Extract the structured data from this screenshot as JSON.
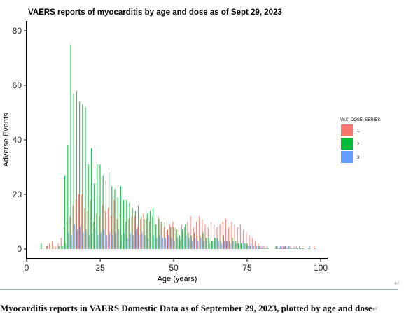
{
  "chart_data": {
    "type": "bar",
    "title": "VAERS reports of myocarditis by age and dose as of Sept 29, 2023",
    "xlabel": "Age (years)",
    "ylabel": "Adverse Events",
    "xlim": [
      0,
      100
    ],
    "ylim": [
      0,
      80
    ],
    "xticks": [
      "0",
      "25",
      "50",
      "75",
      "100"
    ],
    "yticks": [
      "0",
      "20",
      "40",
      "60",
      "80"
    ],
    "legend": {
      "title": "VAX_DOSE_SERIES",
      "placement": "right"
    },
    "series": [
      {
        "name": "1",
        "color": "#F8766D",
        "x": [
          5,
          7,
          8,
          9,
          10,
          11,
          12,
          13,
          14,
          15,
          16,
          17,
          18,
          19,
          20,
          21,
          22,
          23,
          24,
          25,
          26,
          27,
          28,
          29,
          30,
          31,
          32,
          33,
          34,
          35,
          36,
          37,
          38,
          39,
          40,
          41,
          42,
          43,
          44,
          45,
          46,
          47,
          48,
          49,
          50,
          51,
          52,
          53,
          54,
          55,
          56,
          57,
          58,
          59,
          60,
          61,
          62,
          63,
          64,
          65,
          66,
          67,
          68,
          69,
          70,
          71,
          72,
          73,
          74,
          75,
          76,
          77,
          78,
          79,
          80,
          81,
          82,
          85,
          86,
          87,
          88,
          89,
          90,
          91,
          92,
          93,
          94,
          96,
          98
        ],
        "values": [
          0,
          1,
          2,
          3,
          1,
          2,
          4,
          8,
          10,
          12,
          16,
          18,
          20,
          20,
          15,
          14,
          18,
          10,
          13,
          12,
          16,
          14,
          15,
          12,
          18,
          11,
          13,
          12,
          10,
          11,
          12,
          12,
          8,
          11,
          13,
          11,
          10,
          12,
          9,
          12,
          10,
          8,
          7,
          9,
          10,
          8,
          7,
          9,
          8,
          10,
          12,
          8,
          10,
          12,
          11,
          9,
          8,
          10,
          9,
          8,
          9,
          10,
          11,
          8,
          10,
          9,
          8,
          9,
          7,
          6,
          5,
          4,
          3,
          2,
          1,
          1,
          1,
          1,
          0,
          1,
          1,
          0,
          1,
          1,
          1,
          1,
          1,
          0,
          1
        ]
      },
      {
        "name": "2",
        "color": "#00BA38",
        "x": [
          5,
          7,
          8,
          9,
          10,
          11,
          12,
          13,
          14,
          15,
          16,
          17,
          18,
          19,
          20,
          21,
          22,
          23,
          24,
          25,
          26,
          27,
          28,
          29,
          30,
          31,
          32,
          33,
          34,
          35,
          36,
          37,
          38,
          39,
          40,
          41,
          42,
          43,
          44,
          45,
          46,
          47,
          48,
          49,
          50,
          51,
          52,
          53,
          54,
          55,
          56,
          57,
          58,
          59,
          60,
          61,
          62,
          63,
          64,
          65,
          66,
          67,
          68,
          69,
          70,
          71,
          72,
          73,
          74,
          75,
          76,
          77,
          78,
          79,
          80,
          81,
          82,
          85,
          86,
          87,
          88,
          89,
          90,
          91,
          92,
          93,
          94,
          96,
          98
        ],
        "values": [
          2,
          1,
          1,
          1,
          0,
          1,
          1,
          27,
          38,
          75,
          57,
          58,
          54,
          53,
          52,
          31,
          37,
          24,
          31,
          31,
          27,
          25,
          28,
          23,
          22,
          19,
          23,
          18,
          18,
          17,
          15,
          14,
          16,
          12,
          11,
          13,
          14,
          15,
          9,
          11,
          10,
          10,
          7,
          8,
          8,
          7,
          5,
          7,
          9,
          6,
          5,
          6,
          5,
          5,
          6,
          4,
          4,
          3,
          4,
          4,
          3,
          5,
          3,
          3,
          4,
          3,
          2,
          2,
          2,
          2,
          1,
          1,
          1,
          1,
          0,
          0,
          0,
          1,
          0,
          0,
          1,
          1,
          0,
          0,
          0,
          0,
          0,
          0,
          0
        ]
      },
      {
        "name": "3",
        "color": "#619CFF",
        "x": [
          12,
          13,
          14,
          15,
          16,
          17,
          18,
          19,
          20,
          21,
          22,
          23,
          24,
          25,
          26,
          27,
          28,
          29,
          30,
          31,
          32,
          33,
          34,
          35,
          36,
          37,
          38,
          39,
          40,
          41,
          42,
          43,
          44,
          45,
          46,
          47,
          48,
          49,
          50,
          51,
          52,
          53,
          54,
          55,
          56,
          57,
          58,
          59,
          60,
          61,
          62,
          63,
          64,
          65,
          66,
          67,
          68,
          69,
          70,
          71,
          72,
          73,
          74,
          75,
          76,
          77,
          78,
          79,
          80,
          81,
          82,
          85,
          86,
          87,
          88,
          89,
          90,
          91,
          92,
          93,
          94,
          96,
          98
        ],
        "values": [
          1,
          2,
          6,
          5,
          9,
          7,
          8,
          6,
          7,
          5,
          6,
          8,
          5,
          6,
          7,
          5,
          6,
          5,
          6,
          7,
          5,
          6,
          4,
          6,
          5,
          7,
          5,
          6,
          5,
          4,
          6,
          5,
          4,
          5,
          4,
          4,
          5,
          4,
          3,
          4,
          3,
          4,
          5,
          4,
          3,
          4,
          3,
          4,
          3,
          3,
          2,
          3,
          4,
          3,
          2,
          3,
          3,
          2,
          3,
          2,
          2,
          3,
          2,
          1,
          2,
          1,
          1,
          1,
          1,
          0,
          0,
          1,
          1,
          1,
          1,
          1,
          0,
          1,
          0,
          0,
          0,
          1,
          0
        ]
      }
    ]
  },
  "caption": {
    "text": "Myocarditis reports in VAERS Domestic Data as of September 29, 2023, plotted by age and dose"
  }
}
